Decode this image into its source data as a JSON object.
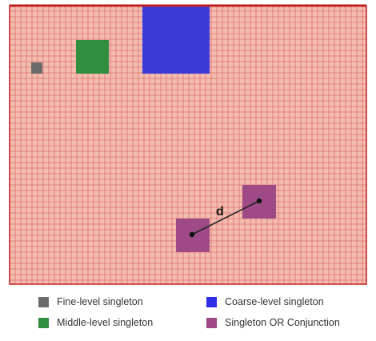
{
  "grid": {
    "background_color": "#f2bcae",
    "line_color": "#e07070",
    "border_color": "#c21f1f"
  },
  "regions": [
    {
      "name": "fine-level",
      "color": "#6b6b6b"
    },
    {
      "name": "middle-level",
      "color": "#2f8f3f"
    },
    {
      "name": "coarse-level",
      "color": "#3a3ad9"
    },
    {
      "name": "singleton-or-conjunction-a",
      "color": "#9e4a86"
    },
    {
      "name": "singleton-or-conjunction-b",
      "color": "#9e4a86"
    }
  ],
  "distance": {
    "label": "d",
    "line_color": "#222222"
  },
  "legend": {
    "items": [
      {
        "label": "Fine-level singleton",
        "color": "#6b6b6b"
      },
      {
        "label": "Coarse-level singleton",
        "color": "#2e2ee6"
      },
      {
        "label": "Middle-level singleton",
        "color": "#2f8f3f"
      },
      {
        "label": "Singleton OR Conjunction",
        "color": "#9e4a86"
      }
    ]
  }
}
